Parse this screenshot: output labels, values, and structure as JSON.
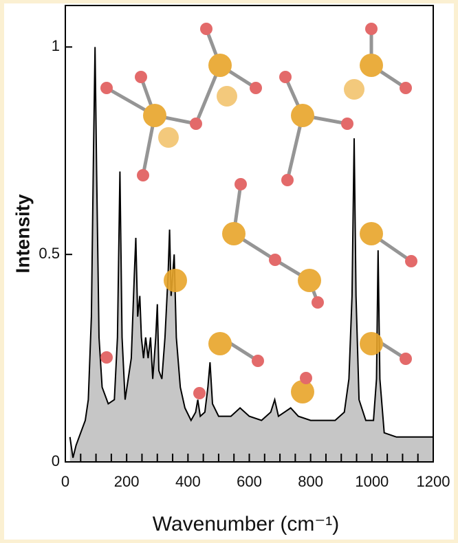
{
  "chart_data": {
    "type": "area",
    "x_label": "Wavenumber (cm⁻¹)",
    "y_label": "Intensity",
    "x": [
      15,
      25,
      35,
      50,
      65,
      75,
      85,
      92,
      97,
      102,
      110,
      120,
      140,
      160,
      170,
      178,
      185,
      195,
      205,
      215,
      225,
      230,
      236,
      243,
      248,
      255,
      262,
      270,
      278,
      285,
      295,
      300,
      305,
      315,
      325,
      335,
      340,
      345,
      355,
      362,
      375,
      390,
      410,
      425,
      432,
      440,
      455,
      465,
      472,
      480,
      500,
      540,
      570,
      600,
      640,
      670,
      683,
      695,
      715,
      735,
      760,
      800,
      840,
      880,
      910,
      925,
      935,
      942,
      948,
      958,
      980,
      1005,
      1015,
      1020,
      1026,
      1040,
      1080,
      1150,
      1200
    ],
    "values": [
      0.06,
      0.01,
      0.04,
      0.07,
      0.1,
      0.15,
      0.35,
      0.75,
      1.0,
      0.7,
      0.3,
      0.18,
      0.14,
      0.15,
      0.3,
      0.7,
      0.3,
      0.15,
      0.2,
      0.25,
      0.45,
      0.54,
      0.35,
      0.4,
      0.3,
      0.25,
      0.3,
      0.25,
      0.3,
      0.2,
      0.3,
      0.38,
      0.22,
      0.2,
      0.3,
      0.45,
      0.56,
      0.4,
      0.5,
      0.3,
      0.18,
      0.13,
      0.1,
      0.12,
      0.15,
      0.11,
      0.12,
      0.18,
      0.24,
      0.14,
      0.11,
      0.11,
      0.13,
      0.11,
      0.1,
      0.12,
      0.15,
      0.11,
      0.12,
      0.13,
      0.11,
      0.1,
      0.1,
      0.1,
      0.12,
      0.2,
      0.4,
      0.78,
      0.4,
      0.15,
      0.1,
      0.1,
      0.2,
      0.51,
      0.2,
      0.07,
      0.06,
      0.06,
      0.06
    ],
    "color": "#c6c6c6",
    "line_color": "#000000",
    "xlim": [
      0,
      1200
    ],
    "ylim": [
      0,
      1.1
    ],
    "xticks": [
      0,
      200,
      400,
      600,
      800,
      1000,
      1200
    ],
    "yticks": [
      0,
      0.5,
      1
    ],
    "x_minor_ticks": [
      50,
      100,
      150,
      250,
      300,
      350,
      450,
      500,
      550,
      650,
      700,
      750,
      850,
      900,
      950,
      1050,
      1100,
      1150
    ]
  }
}
